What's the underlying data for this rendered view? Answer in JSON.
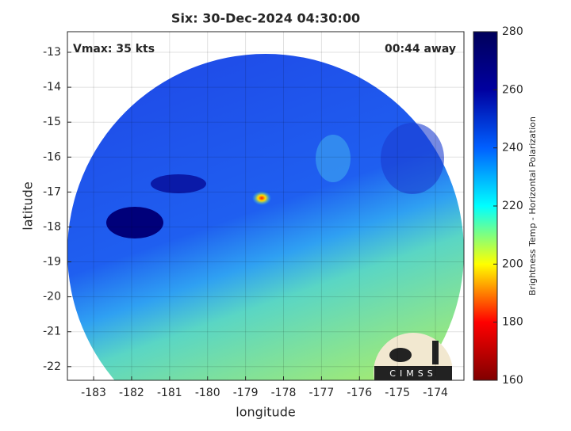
{
  "chart_data": {
    "type": "image",
    "title": "Six: 30-Dec-2024 04:30:00",
    "annotations": [
      "Vmax: 35 kts",
      "00:44 away"
    ],
    "xlabel": "longitude",
    "ylabel": "latitude",
    "xlim": [
      -183.69,
      -173.25
    ],
    "xticks": [
      -183,
      -182,
      -181,
      -180,
      -179,
      -178,
      -177,
      -176,
      -175,
      -174
    ],
    "ylim": [
      -22.39,
      -12.41
    ],
    "yticks": [
      -13,
      -14,
      -15,
      -16,
      -17,
      -18,
      -19,
      -20,
      -21,
      -22
    ],
    "grid": true,
    "colorbar": {
      "label": "Brightness Temp - Horizontal Polarization",
      "lim": [
        160,
        280
      ],
      "ticks": [
        160,
        180,
        200,
        220,
        240,
        260,
        280
      ],
      "colormap": [
        "#800000",
        "#ff0000",
        "#ffff00",
        "#00ffff",
        "#0060ff",
        "#0000a0",
        "#00005a"
      ]
    },
    "logo_text": "CIMSS"
  }
}
